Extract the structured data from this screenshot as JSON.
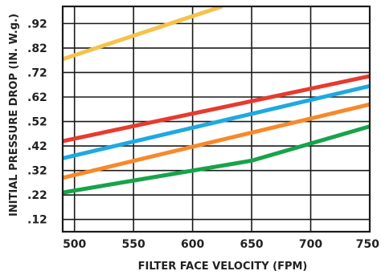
{
  "chart_data": {
    "type": "line",
    "xlabel": "FILTER FACE VELOCITY (FPM)",
    "ylabel": "INITIAL PRESSURE DROP (IN. W.g.)",
    "xlim": [
      490,
      750
    ],
    "ylim": [
      0.07,
      0.99
    ],
    "x_ticks": [
      500,
      550,
      600,
      650,
      700,
      750
    ],
    "x_tick_labels": [
      "500",
      "550",
      "600",
      "650",
      "700",
      "750"
    ],
    "y_ticks": [
      0.12,
      0.22,
      0.32,
      0.42,
      0.52,
      0.62,
      0.72,
      0.82,
      0.92
    ],
    "y_tick_labels": [
      ".12",
      ".22",
      ".32",
      ".42",
      ".52",
      ".62",
      ".72",
      ".82",
      ".92"
    ],
    "grid": true,
    "legend": "none",
    "series": [
      {
        "color": "#f5c24c",
        "x": [
          490,
          625
        ],
        "y": [
          0.775,
          0.99
        ]
      },
      {
        "color": "#e63b2e",
        "x": [
          490,
          750
        ],
        "y": [
          0.44,
          0.705
        ]
      },
      {
        "color": "#1ea9e1",
        "x": [
          490,
          750
        ],
        "y": [
          0.37,
          0.665
        ]
      },
      {
        "color": "#f7892b",
        "x": [
          490,
          750
        ],
        "y": [
          0.29,
          0.59
        ]
      },
      {
        "color": "#17a34a",
        "x": [
          490,
          650,
          750
        ],
        "y": [
          0.23,
          0.36,
          0.5
        ]
      }
    ]
  }
}
